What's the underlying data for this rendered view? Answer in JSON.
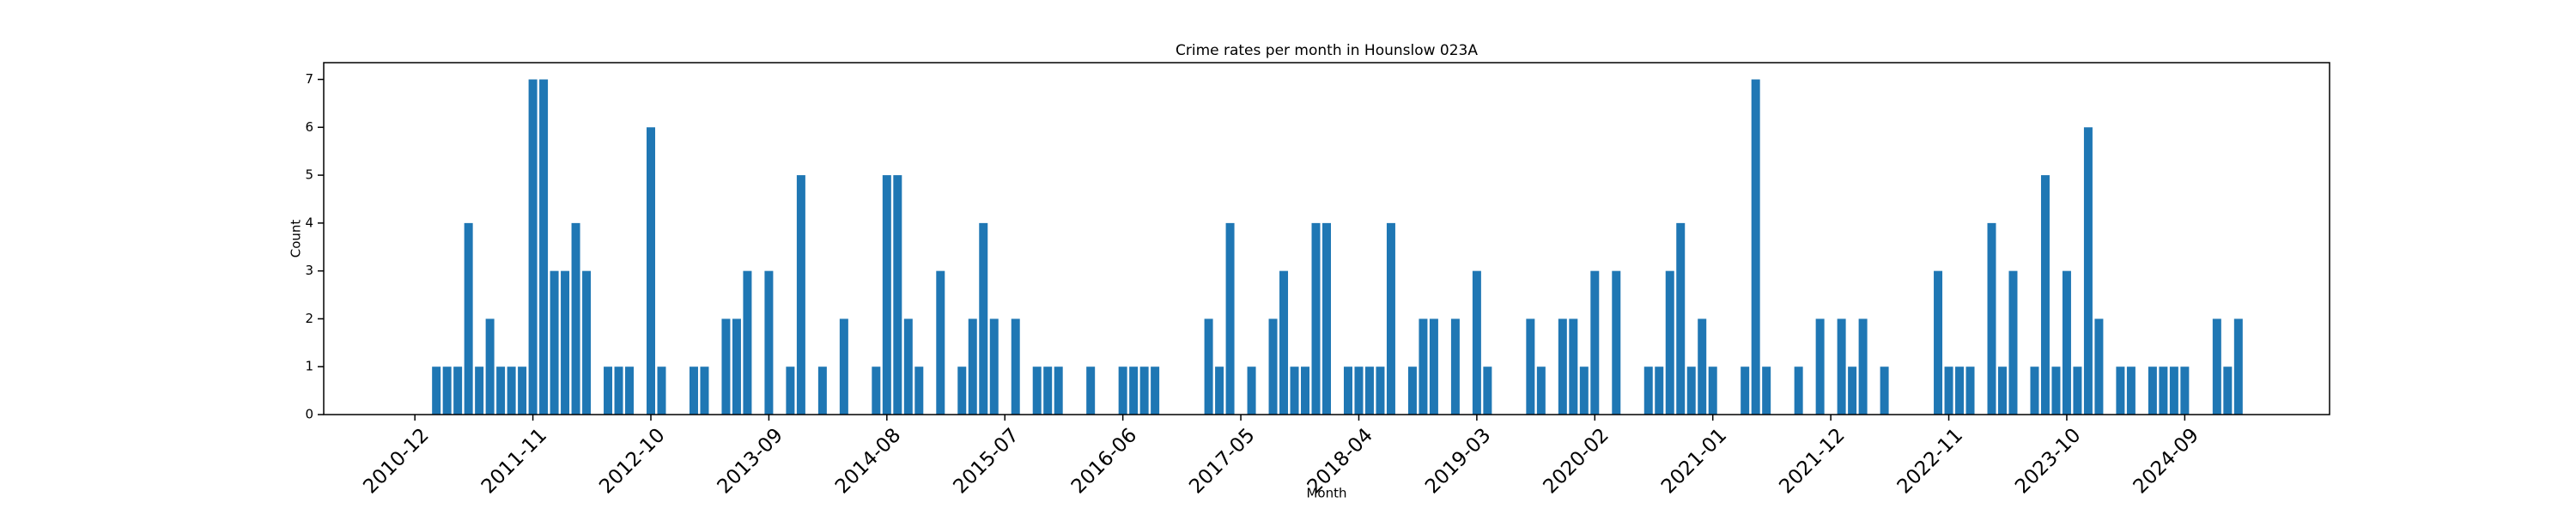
{
  "chart_data": {
    "type": "bar",
    "title": "Crime rates per month in Hounslow 023A",
    "xlabel": "Month",
    "ylabel": "Count",
    "color": "#1f77b4",
    "categories": [
      "2010-12",
      null,
      null,
      null,
      null,
      null,
      null,
      null,
      null,
      null,
      null,
      "2011-11",
      null,
      null,
      null,
      null,
      null,
      null,
      null,
      null,
      null,
      null,
      "2012-10",
      null,
      null,
      null,
      null,
      null,
      null,
      null,
      null,
      null,
      null,
      "2013-09",
      null,
      null,
      null,
      null,
      null,
      null,
      null,
      null,
      null,
      null,
      "2014-08",
      null,
      null,
      null,
      null,
      null,
      null,
      null,
      null,
      null,
      null,
      "2015-07",
      null,
      null,
      null,
      null,
      null,
      null,
      null,
      null,
      null,
      null,
      "2016-06",
      null,
      null,
      null,
      null,
      null,
      null,
      null,
      null,
      null,
      null,
      "2017-05",
      null,
      null,
      null,
      null,
      null,
      null,
      null,
      null,
      null,
      null,
      "2018-04",
      null,
      null,
      null,
      null,
      null,
      null,
      null,
      null,
      null,
      null,
      "2019-03",
      null,
      null,
      null,
      null,
      null,
      null,
      null,
      null,
      null,
      null,
      "2020-02",
      null,
      null,
      null,
      null,
      null,
      null,
      null,
      null,
      null,
      null,
      "2021-01",
      null,
      null,
      null,
      null,
      null,
      null,
      null,
      null,
      null,
      null,
      "2021-12",
      null,
      null,
      null,
      null,
      null,
      null,
      null,
      null,
      null,
      null,
      "2022-11",
      null,
      null,
      null,
      null,
      null,
      null,
      null,
      null,
      null,
      null,
      "2023-10",
      null,
      null,
      null,
      null,
      null,
      null,
      null,
      null,
      null,
      null,
      "2024-09",
      null,
      null,
      null,
      null,
      null
    ],
    "values": [
      0,
      0,
      1,
      1,
      1,
      4,
      1,
      2,
      1,
      1,
      1,
      7,
      7,
      3,
      3,
      4,
      3,
      0,
      1,
      1,
      1,
      0,
      6,
      1,
      0,
      0,
      1,
      1,
      0,
      2,
      2,
      3,
      0,
      3,
      0,
      1,
      5,
      0,
      1,
      0,
      2,
      0,
      0,
      1,
      5,
      5,
      2,
      1,
      0,
      3,
      0,
      1,
      2,
      4,
      2,
      0,
      2,
      0,
      1,
      1,
      1,
      0,
      0,
      1,
      0,
      0,
      1,
      1,
      1,
      1,
      0,
      0,
      0,
      0,
      2,
      1,
      4,
      0,
      1,
      0,
      2,
      3,
      1,
      1,
      4,
      4,
      0,
      1,
      1,
      1,
      1,
      4,
      0,
      1,
      2,
      2,
      0,
      2,
      0,
      3,
      1,
      0,
      0,
      0,
      2,
      1,
      0,
      2,
      2,
      1,
      3,
      0,
      3,
      0,
      0,
      1,
      1,
      3,
      4,
      1,
      2,
      1,
      0,
      0,
      1,
      7,
      1,
      0,
      0,
      1,
      0,
      2,
      0,
      2,
      1,
      2,
      0,
      1,
      0,
      0,
      0,
      0,
      3,
      1,
      1,
      1,
      0,
      4,
      1,
      3,
      0,
      1,
      5,
      1,
      3,
      1,
      6,
      2,
      0,
      1,
      1,
      0,
      1,
      1,
      1,
      1,
      0,
      0,
      2,
      1,
      2
    ],
    "ylim": [
      0,
      7.35
    ],
    "yticks": [
      0,
      1,
      2,
      3,
      4,
      5,
      6,
      7
    ]
  }
}
